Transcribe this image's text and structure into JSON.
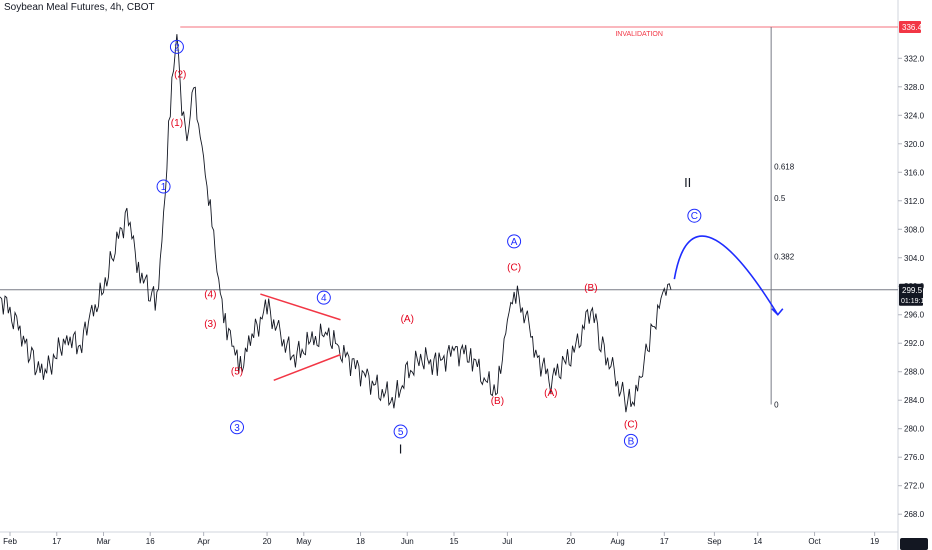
{
  "header": {
    "title": "Soybean Meal Futures, 4h, CBOT"
  },
  "annotations": {
    "invalidation": "INVALIDATION",
    "red_labels": [
      {
        "text": "(2)",
        "date": "2020-03-25",
        "price": 329.3
      },
      {
        "text": "(1)",
        "date": "2020-03-24",
        "price": 322.5
      },
      {
        "text": "(4)",
        "date": "2020-04-03",
        "price": 298.4
      },
      {
        "text": "(3)",
        "date": "2020-04-03",
        "price": 294.3
      },
      {
        "text": "(5)",
        "date": "2020-04-11",
        "price": 287.6
      },
      {
        "text": "(A)",
        "date": "2020-06-01",
        "price": 295.0
      },
      {
        "text": "(B)",
        "date": "2020-06-28",
        "price": 283.5
      },
      {
        "text": "(C)",
        "date": "2020-07-03",
        "price": 302.2
      },
      {
        "text": "(A)",
        "date": "2020-07-14",
        "price": 284.6
      },
      {
        "text": "(B)",
        "date": "2020-07-26",
        "price": 299.3
      },
      {
        "text": "(C)",
        "date": "2020-08-07",
        "price": 280.2
      }
    ],
    "circle_labels": [
      {
        "text": "2",
        "date": "2020-03-24",
        "price": 333.6
      },
      {
        "text": "1",
        "date": "2020-03-20",
        "price": 314.0
      },
      {
        "text": "3",
        "date": "2020-04-11",
        "price": 280.2
      },
      {
        "text": "4",
        "date": "2020-05-07",
        "price": 298.4
      },
      {
        "text": "5",
        "date": "2020-05-30",
        "price": 279.6
      },
      {
        "text": "A",
        "date": "2020-07-03",
        "price": 306.3
      },
      {
        "text": "B",
        "date": "2020-08-07",
        "price": 278.3
      },
      {
        "text": "C",
        "date": "2020-08-26",
        "price": 309.9
      }
    ],
    "roman_labels": [
      {
        "text": "I",
        "date": "2020-05-30",
        "price": 276.5
      },
      {
        "text": "II",
        "date": "2020-08-24",
        "price": 313.9
      }
    ],
    "fib_labels": [
      {
        "text": "0.618",
        "price": 316.8
      },
      {
        "text": "0.5",
        "price": 312.4
      },
      {
        "text": "0.382",
        "price": 304.2
      },
      {
        "text": "0",
        "price": 283.4
      }
    ]
  },
  "chart_data": {
    "type": "line",
    "title": "Soybean Meal Futures, 4h, CBOT",
    "xlabel": "",
    "ylabel": "",
    "ylim": [
      265.5,
      338.5
    ],
    "xlim": [
      "2020-01-31",
      "2020-10-26"
    ],
    "y_ticks": [
      268.0,
      272.0,
      276.0,
      280.0,
      284.0,
      288.0,
      292.0,
      296.0,
      300.0,
      304.0,
      308.0,
      312.0,
      316.0,
      320.0,
      324.0,
      328.0,
      332.0
    ],
    "x_ticks": [
      {
        "label": "Feb",
        "date": "2020-02-03"
      },
      {
        "label": "17",
        "date": "2020-02-17"
      },
      {
        "label": "Mar",
        "date": "2020-03-02"
      },
      {
        "label": "16",
        "date": "2020-03-16"
      },
      {
        "label": "Apr",
        "date": "2020-04-01"
      },
      {
        "label": "20",
        "date": "2020-04-20"
      },
      {
        "label": "May",
        "date": "2020-05-01"
      },
      {
        "label": "18",
        "date": "2020-05-18"
      },
      {
        "label": "Jun",
        "date": "2020-06-01"
      },
      {
        "label": "15",
        "date": "2020-06-15"
      },
      {
        "label": "Jul",
        "date": "2020-07-01"
      },
      {
        "label": "20",
        "date": "2020-07-20"
      },
      {
        "label": "Aug",
        "date": "2020-08-03"
      },
      {
        "label": "17",
        "date": "2020-08-17"
      },
      {
        "label": "Sep",
        "date": "2020-09-01"
      },
      {
        "label": "14",
        "date": "2020-09-14"
      },
      {
        "label": "Oct",
        "date": "2020-10-01"
      },
      {
        "label": "19",
        "date": "2020-10-19"
      }
    ],
    "current_price": {
      "value": "299.5",
      "countdown": "01:19:15"
    },
    "invalidation_level": {
      "value": "336.4",
      "price": 336.4,
      "from_date": "2020-03-25"
    },
    "fib_anchor": {
      "top_date": "2020-09-18",
      "top_price": 336.4,
      "bottom_price": 283.4
    },
    "series": [
      {
        "values": [
          [
            "2020-01-31",
            298.5
          ],
          [
            "2020-02-04",
            296.0
          ],
          [
            "2020-02-07",
            292.5
          ],
          [
            "2020-02-10",
            289.5
          ],
          [
            "2020-02-13",
            287.5
          ],
          [
            "2020-02-17",
            290.5
          ],
          [
            "2020-02-20",
            293.0
          ],
          [
            "2020-02-24",
            291.5
          ],
          [
            "2020-02-27",
            295.5
          ],
          [
            "2020-03-02",
            299.5
          ],
          [
            "2020-03-05",
            305.0
          ],
          [
            "2020-03-09",
            310.0
          ],
          [
            "2020-03-11",
            305.5
          ],
          [
            "2020-03-13",
            302.0
          ],
          [
            "2020-03-16",
            299.0
          ],
          [
            "2020-03-18",
            297.5
          ],
          [
            "2020-03-20",
            310.0
          ],
          [
            "2020-03-22",
            325.0
          ],
          [
            "2020-03-24",
            335.5
          ],
          [
            "2020-03-25",
            328.0
          ],
          [
            "2020-03-27",
            320.0
          ],
          [
            "2020-03-29",
            327.5
          ],
          [
            "2020-03-31",
            322.0
          ],
          [
            "2020-04-02",
            314.5
          ],
          [
            "2020-04-04",
            306.0
          ],
          [
            "2020-04-06",
            299.0
          ],
          [
            "2020-04-08",
            294.5
          ],
          [
            "2020-04-10",
            291.0
          ],
          [
            "2020-04-12",
            288.5
          ],
          [
            "2020-04-15",
            292.5
          ],
          [
            "2020-04-20",
            297.0
          ],
          [
            "2020-04-24",
            293.0
          ],
          [
            "2020-04-28",
            290.0
          ],
          [
            "2020-05-03",
            292.0
          ],
          [
            "2020-05-08",
            293.5
          ],
          [
            "2020-05-12",
            291.0
          ],
          [
            "2020-05-16",
            289.0
          ],
          [
            "2020-05-20",
            287.0
          ],
          [
            "2020-05-24",
            285.5
          ],
          [
            "2020-05-28",
            284.0
          ],
          [
            "2020-06-01",
            287.5
          ],
          [
            "2020-06-05",
            290.0
          ],
          [
            "2020-06-10",
            289.0
          ],
          [
            "2020-06-15",
            291.0
          ],
          [
            "2020-06-20",
            290.5
          ],
          [
            "2020-06-24",
            287.0
          ],
          [
            "2020-06-28",
            285.0
          ],
          [
            "2020-07-01",
            296.0
          ],
          [
            "2020-07-03",
            299.5
          ],
          [
            "2020-07-07",
            295.0
          ],
          [
            "2020-07-10",
            290.0
          ],
          [
            "2020-07-14",
            287.0
          ],
          [
            "2020-07-18",
            289.0
          ],
          [
            "2020-07-22",
            291.5
          ],
          [
            "2020-07-26",
            297.5
          ],
          [
            "2020-07-29",
            292.0
          ],
          [
            "2020-08-02",
            287.5
          ],
          [
            "2020-08-05",
            284.0
          ],
          [
            "2020-08-08",
            283.5
          ],
          [
            "2020-08-11",
            290.0
          ],
          [
            "2020-08-14",
            295.0
          ],
          [
            "2020-08-17",
            299.0
          ],
          [
            "2020-08-19",
            299.5
          ]
        ]
      }
    ],
    "projection": {
      "start": [
        "2020-08-20",
        301.0
      ],
      "peak": [
        "2020-08-26",
        308.0
      ],
      "end": [
        "2020-09-20",
        296.0
      ]
    }
  }
}
